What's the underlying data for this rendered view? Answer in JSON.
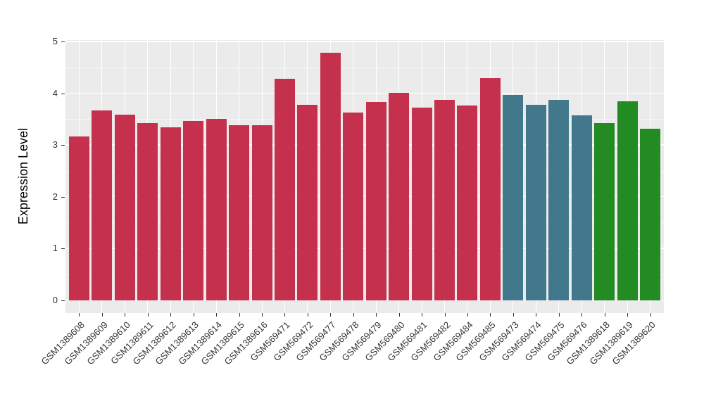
{
  "figure": {
    "background": "#FFFFFF",
    "panel_background": "#EBEBEB",
    "grid_color": "#FFFFFF"
  },
  "chart_data": {
    "type": "bar",
    "title": "",
    "xlabel": "",
    "ylabel": "Expression Level",
    "ylim": [
      0,
      5
    ],
    "yticks": [
      "0",
      "1",
      "2",
      "3",
      "4",
      "5"
    ],
    "grid": "on",
    "legend": "none",
    "categories": [
      "GSM1389608",
      "GSM1389609",
      "GSM1389610",
      "GSM1389611",
      "GSM1389612",
      "GSM1389613",
      "GSM1389614",
      "GSM1389615",
      "GSM1389616",
      "GSM569471",
      "GSM569472",
      "GSM569477",
      "GSM569478",
      "GSM569479",
      "GSM569480",
      "GSM569481",
      "GSM569482",
      "GSM569484",
      "GSM569485",
      "GSM569473",
      "GSM569474",
      "GSM569475",
      "GSM569476",
      "GSM1389618",
      "GSM1389619",
      "GSM1389620"
    ],
    "values": [
      3.17,
      3.67,
      3.59,
      3.43,
      3.34,
      3.47,
      3.51,
      3.38,
      3.39,
      4.28,
      3.78,
      4.78,
      3.63,
      3.83,
      4.01,
      3.72,
      3.87,
      3.77,
      4.29,
      3.97,
      3.78,
      3.88,
      3.58,
      3.42,
      3.84,
      3.31
    ],
    "bar_groups": [
      "crimson",
      "crimson",
      "crimson",
      "crimson",
      "crimson",
      "crimson",
      "crimson",
      "crimson",
      "crimson",
      "crimson",
      "crimson",
      "crimson",
      "crimson",
      "crimson",
      "crimson",
      "crimson",
      "crimson",
      "crimson",
      "crimson",
      "teal",
      "teal",
      "teal",
      "teal",
      "green",
      "green",
      "green"
    ],
    "palette": {
      "crimson": "#C5314D",
      "teal": "#42788B",
      "green": "#228B22"
    }
  }
}
